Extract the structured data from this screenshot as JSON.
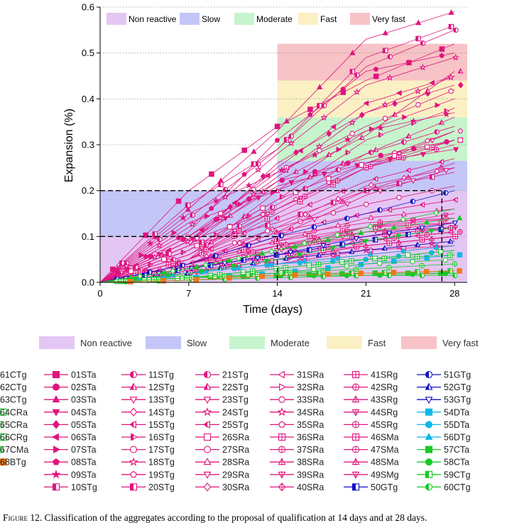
{
  "chart_data": {
    "type": "line",
    "title": "",
    "xlabel": "Time (days)",
    "ylabel": "Expansion (%)",
    "xlim": [
      0,
      29
    ],
    "ylim": [
      0,
      0.6
    ],
    "xticks": [
      0,
      7,
      14,
      21,
      28
    ],
    "yticks": [
      0.0,
      0.1,
      0.2,
      0.3,
      0.4,
      0.5,
      0.6
    ],
    "grid": "horizontal dotted",
    "legend_position": "top",
    "x": [
      0,
      7,
      14,
      21,
      28
    ],
    "classes": [
      {
        "name": "Non reactive",
        "color": "#e4c6f4"
      },
      {
        "name": "Slow",
        "color": "#c4c6f7"
      },
      {
        "name": "Moderate",
        "color": "#c6f4cc"
      },
      {
        "name": "Fast",
        "color": "#fbf0c4"
      },
      {
        "name": "Very fast",
        "color": "#f7c3c6"
      }
    ],
    "bands_14d": [
      {
        "class": "Non reactive",
        "y": [
          0,
          0.1
        ]
      },
      {
        "class": "Slow",
        "y": [
          0.1,
          0.2
        ]
      }
    ],
    "bands_28d": [
      {
        "class": "Non reactive",
        "y": [
          0,
          0.2
        ]
      },
      {
        "class": "Slow",
        "y": [
          0.2,
          0.265
        ]
      },
      {
        "class": "Moderate",
        "y": [
          0.265,
          0.36
        ]
      },
      {
        "class": "Fast",
        "y": [
          0.36,
          0.44
        ]
      },
      {
        "class": "Very fast",
        "y": [
          0.44,
          0.52
        ]
      }
    ],
    "series": [
      {
        "name": "01STa",
        "color": "#e0147e",
        "marker": "square",
        "values": [
          0,
          0.2,
          0.34,
          0.44,
          0.52
        ]
      },
      {
        "name": "02STa",
        "color": "#e0147e",
        "marker": "circle",
        "values": [
          0,
          0.1,
          0.22,
          0.27,
          0.31
        ]
      },
      {
        "name": "03STa",
        "color": "#e0147e",
        "marker": "triangle",
        "values": [
          0,
          0.16,
          0.33,
          0.53,
          0.59
        ]
      },
      {
        "name": "04STa",
        "color": "#e0147e",
        "marker": "triangle-down",
        "values": [
          0,
          0.09,
          0.21,
          0.26,
          0.29
        ]
      },
      {
        "name": "05STa",
        "color": "#e0147e",
        "marker": "diamond",
        "values": [
          0,
          0.08,
          0.26,
          0.37,
          0.43
        ]
      },
      {
        "name": "06STa",
        "color": "#e0147e",
        "marker": "triangle-left",
        "values": [
          0,
          0.09,
          0.25,
          0.39,
          0.45
        ]
      },
      {
        "name": "07STa",
        "color": "#e0147e",
        "marker": "triangle-right",
        "values": [
          0,
          0.13,
          0.2,
          0.33,
          0.4
        ]
      },
      {
        "name": "08STa",
        "color": "#e0147e",
        "marker": "pentagon",
        "values": [
          0,
          0.11,
          0.31,
          0.46,
          0.5
        ]
      },
      {
        "name": "09STa",
        "color": "#e0147e",
        "marker": "star",
        "values": [
          0,
          0.15,
          0.24,
          0.33,
          0.37
        ]
      },
      {
        "name": "10STg",
        "color": "#e0147e",
        "marker": "square-half",
        "values": [
          0,
          0.17,
          0.29,
          0.49,
          0.56
        ]
      },
      {
        "name": "11STg",
        "color": "#e0147e",
        "marker": "circle-half",
        "values": [
          0,
          0.14,
          0.29,
          0.47,
          0.55
        ]
      },
      {
        "name": "12STg",
        "color": "#e0147e",
        "marker": "triangle-half",
        "values": [
          0,
          0.08,
          0.22,
          0.32,
          0.46
        ]
      },
      {
        "name": "13STg",
        "color": "#e0147e",
        "marker": "triangle-down-half",
        "values": [
          0,
          0.06,
          0.16,
          0.25,
          0.33
        ]
      },
      {
        "name": "14STg",
        "color": "#e0147e",
        "marker": "diamond-half",
        "values": [
          0,
          0.04,
          0.12,
          0.21,
          0.25
        ]
      },
      {
        "name": "15STg",
        "color": "#e0147e",
        "marker": "triangle-left-half",
        "values": [
          0,
          0.05,
          0.14,
          0.22,
          0.27
        ]
      },
      {
        "name": "16STg",
        "color": "#e0147e",
        "marker": "triangle-right-half",
        "values": [
          0,
          0.07,
          0.18,
          0.31,
          0.38
        ]
      },
      {
        "name": "17STg",
        "color": "#e0147e",
        "marker": "circle-open",
        "values": [
          0,
          0.1,
          0.24,
          0.34,
          0.42
        ]
      },
      {
        "name": "18STg",
        "color": "#e0147e",
        "marker": "star-open",
        "values": [
          0,
          0.12,
          0.28,
          0.43,
          0.49
        ]
      },
      {
        "name": "19STg",
        "color": "#e0147e",
        "marker": "pentagon-open",
        "values": [
          0,
          0.09,
          0.16,
          0.26,
          0.33
        ]
      },
      {
        "name": "20STg",
        "color": "#e0147e",
        "marker": "square-half",
        "values": [
          0,
          0.08,
          0.13,
          0.2,
          0.24
        ]
      },
      {
        "name": "21STg",
        "color": "#e0147e",
        "marker": "circle-half",
        "values": [
          0,
          0.06,
          0.17,
          0.28,
          0.34
        ]
      },
      {
        "name": "22STg",
        "color": "#e0147e",
        "marker": "triangle-half",
        "values": [
          0,
          0.05,
          0.2,
          0.28,
          0.36
        ]
      },
      {
        "name": "23STg",
        "color": "#e0147e",
        "marker": "triangle-down-half",
        "values": [
          0,
          0.04,
          0.1,
          0.19,
          0.25
        ]
      },
      {
        "name": "24STg",
        "color": "#e0147e",
        "marker": "star-open",
        "values": [
          0,
          0.09,
          0.23,
          0.37,
          0.45
        ]
      },
      {
        "name": "25STg",
        "color": "#e0147e",
        "marker": "triangle-left-half",
        "values": [
          0,
          0.04,
          0.11,
          0.15,
          0.18
        ]
      },
      {
        "name": "26SRa",
        "color": "#e0147e",
        "marker": "square-open",
        "values": [
          0,
          0.07,
          0.18,
          0.26,
          0.31
        ]
      },
      {
        "name": "27SRa",
        "color": "#e0147e",
        "marker": "circle-open",
        "values": [
          0,
          0.05,
          0.12,
          0.17,
          0.21
        ]
      },
      {
        "name": "28SRa",
        "color": "#e0147e",
        "marker": "triangle-open",
        "values": [
          0,
          0.04,
          0.09,
          0.14,
          0.16
        ]
      },
      {
        "name": "29SRa",
        "color": "#e0147e",
        "marker": "triangle-down-open",
        "values": [
          0,
          0.03,
          0.07,
          0.11,
          0.13
        ]
      },
      {
        "name": "30SRa",
        "color": "#e0147e",
        "marker": "diamond-open",
        "values": [
          0,
          0.03,
          0.07,
          0.12,
          0.14
        ]
      },
      {
        "name": "31SRa",
        "color": "#e0147e",
        "marker": "triangle-left-open",
        "values": [
          0,
          0.03,
          0.06,
          0.09,
          0.11
        ]
      },
      {
        "name": "32SRa",
        "color": "#e0147e",
        "marker": "triangle-right-open",
        "values": [
          0,
          0.02,
          0.05,
          0.08,
          0.1
        ]
      },
      {
        "name": "33SRa",
        "color": "#e0147e",
        "marker": "hexagon-open",
        "values": [
          0,
          0.03,
          0.06,
          0.09,
          0.11
        ]
      },
      {
        "name": "34SRa",
        "color": "#e0147e",
        "marker": "star-open",
        "values": [
          0,
          0.02,
          0.04,
          0.07,
          0.09
        ]
      },
      {
        "name": "35SRa",
        "color": "#e0147e",
        "marker": "pentagon-open",
        "values": [
          0,
          0.02,
          0.05,
          0.07,
          0.08
        ]
      },
      {
        "name": "36SRa",
        "color": "#e0147e",
        "marker": "square-cross",
        "values": [
          0,
          0.04,
          0.09,
          0.12,
          0.13
        ]
      },
      {
        "name": "37SRa",
        "color": "#e0147e",
        "marker": "circle-cross",
        "values": [
          0,
          0.04,
          0.1,
          0.13,
          0.14
        ]
      },
      {
        "name": "38SRa",
        "color": "#e0147e",
        "marker": "triangle-cross",
        "values": [
          0,
          0.03,
          0.08,
          0.11,
          0.12
        ]
      },
      {
        "name": "39SRa",
        "color": "#e0147e",
        "marker": "triangle-down-cross",
        "values": [
          0,
          0.03,
          0.07,
          0.1,
          0.12
        ]
      },
      {
        "name": "40SRa",
        "color": "#e0147e",
        "marker": "diamond-cross",
        "values": [
          0,
          0.02,
          0.06,
          0.09,
          0.11
        ]
      },
      {
        "name": "41SRg",
        "color": "#e0147e",
        "marker": "square-cross",
        "values": [
          0,
          0.05,
          0.15,
          0.25,
          0.31
        ]
      },
      {
        "name": "42SRg",
        "color": "#e0147e",
        "marker": "circle-cross",
        "values": [
          0,
          0.05,
          0.16,
          0.25,
          0.3
        ]
      },
      {
        "name": "43SRg",
        "color": "#e0147e",
        "marker": "triangle-cross",
        "values": [
          0,
          0.04,
          0.11,
          0.2,
          0.26
        ]
      },
      {
        "name": "44SRg",
        "color": "#e0147e",
        "marker": "triangle-down-cross",
        "values": [
          0,
          0.04,
          0.08,
          0.12,
          0.15
        ]
      },
      {
        "name": "45SRg",
        "color": "#e0147e",
        "marker": "circle-cross",
        "values": [
          0,
          0.03,
          0.08,
          0.1,
          0.12
        ]
      },
      {
        "name": "46SMa",
        "color": "#e0147e",
        "marker": "square-cross",
        "values": [
          0,
          0.03,
          0.06,
          0.08,
          0.1
        ]
      },
      {
        "name": "47SMa",
        "color": "#e0147e",
        "marker": "circle-cross",
        "values": [
          0,
          0.03,
          0.06,
          0.09,
          0.11
        ]
      },
      {
        "name": "48SMa",
        "color": "#e0147e",
        "marker": "triangle-cross",
        "values": [
          0,
          0.02,
          0.05,
          0.08,
          0.1
        ]
      },
      {
        "name": "49SMg",
        "color": "#e0147e",
        "marker": "triangle-down-cross",
        "values": [
          0,
          0.02,
          0.04,
          0.06,
          0.08
        ]
      },
      {
        "name": "50GTg",
        "color": "#1010c8",
        "marker": "square-half",
        "values": [
          0,
          0.03,
          0.06,
          0.09,
          0.12
        ]
      },
      {
        "name": "51GTg",
        "color": "#1010c8",
        "marker": "circle-half",
        "values": [
          0,
          0.04,
          0.1,
          0.15,
          0.2
        ]
      },
      {
        "name": "52GTg",
        "color": "#1010c8",
        "marker": "triangle-half",
        "values": [
          0,
          0.02,
          0.05,
          0.07,
          0.09
        ]
      },
      {
        "name": "53GTg",
        "color": "#1010c8",
        "marker": "triangle-down-half",
        "values": [
          0,
          0.03,
          0.06,
          0.1,
          0.13
        ]
      },
      {
        "name": "54DTa",
        "color": "#10b8e8",
        "marker": "square",
        "values": [
          0,
          0.01,
          0.02,
          0.04,
          0.06
        ]
      },
      {
        "name": "55DTa",
        "color": "#10b8e8",
        "marker": "circle",
        "values": [
          0,
          0.02,
          0.04,
          0.05,
          0.07
        ]
      },
      {
        "name": "56DTg",
        "color": "#10b8e8",
        "marker": "triangle",
        "values": [
          0,
          0.02,
          0.04,
          0.06,
          0.08
        ]
      },
      {
        "name": "57CTa",
        "color": "#18c828",
        "marker": "square",
        "values": [
          0,
          0.01,
          0.015,
          0.02,
          0.02
        ]
      },
      {
        "name": "58CTa",
        "color": "#18c828",
        "marker": "circle",
        "values": [
          0,
          0.01,
          0.015,
          0.015,
          0.02
        ]
      },
      {
        "name": "59CTg",
        "color": "#18c828",
        "marker": "square-half",
        "values": [
          0,
          0.01,
          0.02,
          0.02,
          0.025
        ]
      },
      {
        "name": "60CTg",
        "color": "#18c828",
        "marker": "circle-half",
        "values": [
          0,
          0.005,
          0.01,
          0.015,
          0.015
        ]
      },
      {
        "name": "61CTg",
        "color": "#18c828",
        "marker": "triangle",
        "values": [
          0,
          0.03,
          0.07,
          0.11,
          0.14
        ]
      },
      {
        "name": "62CTg",
        "color": "#18c828",
        "marker": "triangle-down",
        "values": [
          0,
          0.02,
          0.05,
          0.09,
          0.12
        ]
      },
      {
        "name": "63CTg",
        "color": "#18c828",
        "marker": "diamond-half",
        "values": [
          0,
          0.03,
          0.07,
          0.12,
          0.16
        ]
      },
      {
        "name": "64CRa",
        "color": "#18c828",
        "marker": "square-open",
        "values": [
          0,
          0.01,
          0.03,
          0.05,
          0.07
        ]
      },
      {
        "name": "65CRa",
        "color": "#18c828",
        "marker": "circle-open",
        "values": [
          0,
          0.01,
          0.02,
          0.04,
          0.05
        ]
      },
      {
        "name": "66CRg",
        "color": "#18c828",
        "marker": "square-cross",
        "values": [
          0,
          0.01,
          0.03,
          0.05,
          0.06
        ]
      },
      {
        "name": "67CMa",
        "color": "#18c828",
        "marker": "circle-cross",
        "values": [
          0,
          0.01,
          0.02,
          0.03,
          0.04
        ]
      },
      {
        "name": "68BTg",
        "color": "#f07818",
        "marker": "square",
        "values": [
          0,
          0.005,
          0.015,
          0.02,
          0.025
        ]
      }
    ]
  },
  "caption": {
    "label": "Figure 12.",
    "text": " Classification of the aggregates according to the proposal of qualification at 14 days and at 28 days."
  }
}
